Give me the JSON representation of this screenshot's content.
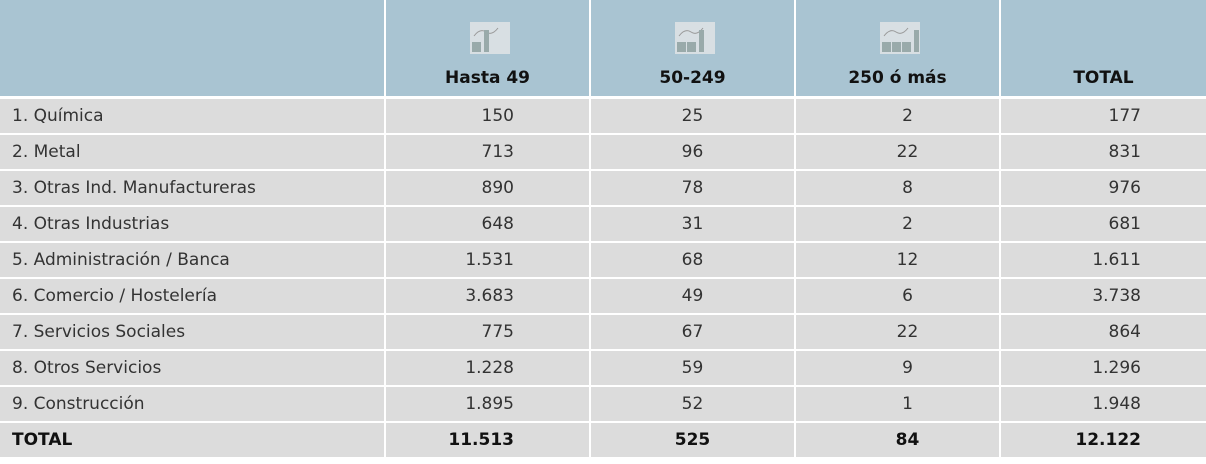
{
  "table": {
    "columns": [
      "Hasta 49",
      "50-249",
      "250 ó más",
      "TOTAL"
    ],
    "rows": [
      [
        "1. Química",
        "150",
        "25",
        "2",
        "177"
      ],
      [
        "2. Metal",
        "713",
        "96",
        "22",
        "831"
      ],
      [
        "3. Otras Ind. Manufactureras",
        "890",
        "78",
        "8",
        "976"
      ],
      [
        "4. Otras Industrias",
        "648",
        "31",
        "2",
        "681"
      ],
      [
        "5. Administración / Banca",
        "1.531",
        "68",
        "12",
        "1.611"
      ],
      [
        "6. Comercio / Hostelería",
        "3.683",
        "49",
        "6",
        "3.738"
      ],
      [
        "7. Servicios Sociales",
        "775",
        "67",
        "22",
        "864"
      ],
      [
        "8. Otros Servicios",
        "1.228",
        "59",
        "9",
        "1.296"
      ],
      [
        "9. Construcción",
        "1.895",
        "52",
        "1",
        "1.948"
      ]
    ],
    "total": [
      "TOTAL",
      "11.513",
      "525",
      "84",
      "12.122"
    ]
  }
}
